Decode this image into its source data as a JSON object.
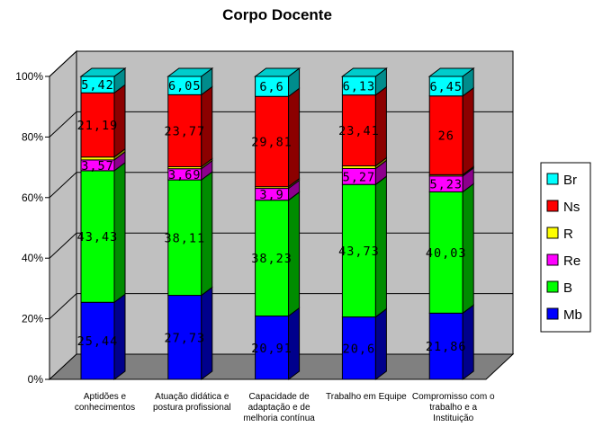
{
  "chart_data": {
    "type": "bar",
    "stacked": true,
    "percent": true,
    "title": "Corpo Docente",
    "categories": [
      [
        "Aptidões e",
        "conhecimentos"
      ],
      [
        "Atuação didática e",
        "postura profissional"
      ],
      [
        "Capacidade de",
        "adaptação e de",
        "melhoria contínua"
      ],
      [
        "Trabalho em Equipe"
      ],
      [
        "Compromisso com o",
        "trabalho e a",
        "Instituição"
      ]
    ],
    "series": [
      {
        "name": "Mb",
        "color": "#0000ff",
        "values": [
          25.44,
          27.73,
          20.91,
          20.6,
          21.86
        ],
        "labels": [
          "25,44",
          "27,73",
          "20,91",
          "20,6",
          "21,86"
        ]
      },
      {
        "name": "B",
        "color": "#00ff00",
        "values": [
          43.43,
          38.11,
          38.23,
          43.73,
          40.03
        ],
        "labels": [
          "43,43",
          "38,11",
          "38,23",
          "43,73",
          "40,03"
        ]
      },
      {
        "name": "Re",
        "color": "#ff00ff",
        "values": [
          3.57,
          3.69,
          3.9,
          5.27,
          5.23
        ],
        "labels": [
          "3,57",
          "3,69",
          "3,9",
          "5,27",
          "5,23"
        ]
      },
      {
        "name": "R",
        "color": "#ffff00",
        "values": [
          0.95,
          0.65,
          0.55,
          0.86,
          0.43
        ],
        "labels": [
          "",
          "",
          "",
          "",
          ""
        ]
      },
      {
        "name": "Ns",
        "color": "#ff0000",
        "values": [
          21.19,
          23.77,
          29.81,
          23.41,
          26
        ],
        "labels": [
          "21,19",
          "23,77",
          "29,81",
          "23,41",
          "26"
        ]
      },
      {
        "name": "Br",
        "color": "#00ffff",
        "values": [
          5.42,
          6.05,
          6.6,
          6.13,
          6.45
        ],
        "labels": [
          "5,42",
          "6,05",
          "6,6",
          "6,13",
          "6,45"
        ]
      }
    ],
    "yticks": [
      "0%",
      "20%",
      "40%",
      "60%",
      "80%",
      "100%"
    ],
    "ylim": [
      0,
      100
    ],
    "grid": true,
    "legend": {
      "position": "right",
      "order": [
        "Br",
        "Ns",
        "R",
        "Re",
        "B",
        "Mb"
      ]
    },
    "style": {
      "wall": "#c0c0c0",
      "floor": "#808080",
      "grid": "#000000"
    }
  }
}
